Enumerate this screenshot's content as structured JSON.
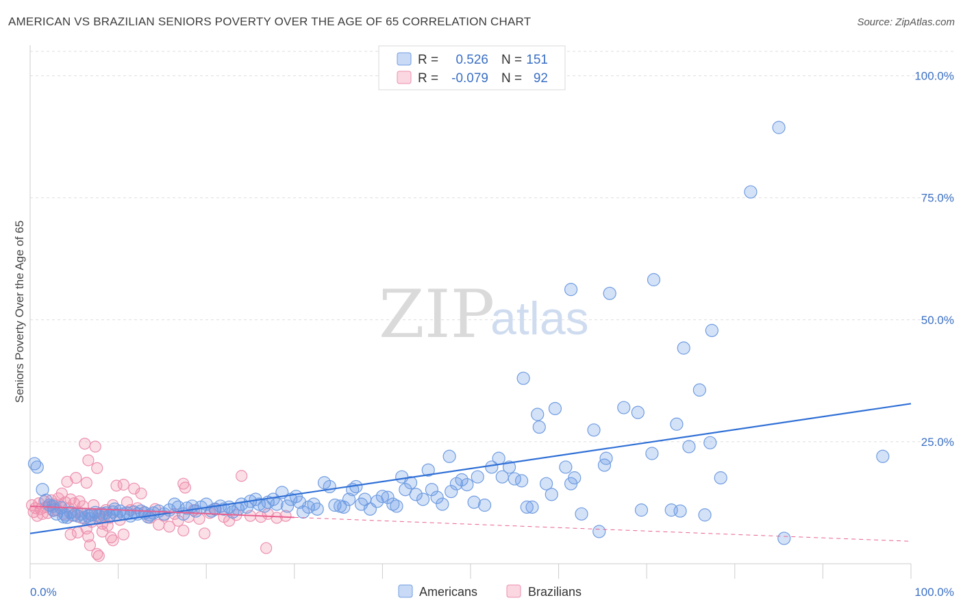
{
  "title": "AMERICAN VS BRAZILIAN SENIORS POVERTY OVER THE AGE OF 65 CORRELATION CHART",
  "source": "Source: ZipAtlas.com",
  "watermark": {
    "zip": "ZIP",
    "atlas": "atlas"
  },
  "colors": {
    "americans_fill": "rgba(100,150,230,0.28)",
    "americans_stroke": "#6f9ce0",
    "americans_line": "#2f6fd6",
    "brazilians_fill": "rgba(240,140,170,0.28)",
    "brazilians_stroke": "#ec8fae",
    "brazilians_line": "#e8608e",
    "grid": "#dddddd",
    "tick_text": "#3a6fc4"
  },
  "legend": {
    "rows": [
      {
        "r_label": "R =",
        "r_value": "0.526",
        "n_label": "N =",
        "n_value": "151",
        "series": "americans"
      },
      {
        "r_label": "R =",
        "r_value": "-0.079",
        "n_label": "N =",
        "n_value": "92",
        "series": "brazilians"
      }
    ]
  },
  "bottom_legend": {
    "americans": "Americans",
    "brazilians": "Brazilians"
  },
  "chart_data": {
    "type": "scatter",
    "title": "AMERICAN VS BRAZILIAN SENIORS POVERTY OVER THE AGE OF 65 CORRELATION CHART",
    "xlabel": "",
    "ylabel": "Seniors Poverty Over the Age of 65",
    "xlim": [
      0,
      100
    ],
    "ylim": [
      0,
      105
    ],
    "x_tick_labels": [
      "0.0%",
      "100.0%"
    ],
    "y_tick_labels": [
      "25.0%",
      "50.0%",
      "75.0%",
      "100.0%"
    ],
    "y_ticks": [
      25,
      50,
      75,
      100
    ],
    "grid": true,
    "legend_position": "top-center",
    "series": [
      {
        "name": "Americans",
        "r": 0.526,
        "n": 151,
        "trend": {
          "x": [
            0,
            100
          ],
          "y": [
            6.2,
            32.8
          ],
          "style": "solid"
        },
        "points": [
          [
            0.5,
            20.5
          ],
          [
            0.8,
            19.8
          ],
          [
            1.4,
            15.2
          ],
          [
            1.8,
            13.0
          ],
          [
            2.2,
            12.0
          ],
          [
            2.7,
            11.0
          ],
          [
            3.0,
            10.2
          ],
          [
            3.5,
            11.5
          ],
          [
            4.0,
            10.0
          ],
          [
            4.2,
            9.5
          ],
          [
            4.6,
            10.5
          ],
          [
            5.0,
            10.0
          ],
          [
            5.4,
            9.8
          ],
          [
            5.8,
            10.2
          ],
          [
            6.2,
            9.4
          ],
          [
            6.6,
            9.8
          ],
          [
            7.0,
            10.0
          ],
          [
            7.4,
            10.5
          ],
          [
            7.8,
            9.8
          ],
          [
            8.2,
            10.2
          ],
          [
            8.6,
            10.4
          ],
          [
            9.0,
            9.8
          ],
          [
            9.4,
            10.6
          ],
          [
            9.8,
            10.0
          ],
          [
            10.2,
            10.8
          ],
          [
            10.6,
            10.2
          ],
          [
            11.0,
            10.4
          ],
          [
            11.4,
            9.8
          ],
          [
            11.8,
            10.6
          ],
          [
            12.2,
            10.2
          ],
          [
            12.6,
            10.8
          ],
          [
            13.0,
            10.4
          ],
          [
            13.6,
            10.0
          ],
          [
            14.0,
            10.4
          ],
          [
            14.6,
            10.8
          ],
          [
            15.2,
            10.2
          ],
          [
            15.8,
            11.0
          ],
          [
            16.4,
            12.2
          ],
          [
            16.8,
            11.6
          ],
          [
            17.4,
            10.2
          ],
          [
            17.8,
            11.4
          ],
          [
            18.4,
            11.8
          ],
          [
            18.8,
            10.8
          ],
          [
            19.4,
            11.6
          ],
          [
            20.0,
            12.2
          ],
          [
            20.6,
            10.8
          ],
          [
            21.0,
            11.2
          ],
          [
            21.6,
            11.8
          ],
          [
            22.0,
            11.2
          ],
          [
            22.6,
            11.6
          ],
          [
            23.0,
            10.6
          ],
          [
            23.6,
            11.2
          ],
          [
            24.0,
            12.2
          ],
          [
            24.6,
            11.6
          ],
          [
            25.0,
            12.8
          ],
          [
            25.6,
            13.2
          ],
          [
            26.0,
            12.2
          ],
          [
            26.6,
            11.8
          ],
          [
            27.0,
            12.6
          ],
          [
            27.6,
            13.2
          ],
          [
            28.0,
            12.2
          ],
          [
            28.6,
            14.6
          ],
          [
            29.2,
            11.8
          ],
          [
            29.6,
            13.2
          ],
          [
            30.2,
            13.8
          ],
          [
            30.6,
            12.6
          ],
          [
            31.0,
            10.6
          ],
          [
            31.6,
            11.6
          ],
          [
            32.2,
            12.2
          ],
          [
            32.6,
            11.2
          ],
          [
            33.4,
            16.6
          ],
          [
            34.0,
            15.8
          ],
          [
            34.6,
            12.0
          ],
          [
            35.2,
            11.8
          ],
          [
            35.6,
            11.6
          ],
          [
            36.2,
            13.2
          ],
          [
            36.6,
            15.2
          ],
          [
            37.0,
            15.8
          ],
          [
            37.6,
            12.2
          ],
          [
            38.0,
            13.2
          ],
          [
            38.6,
            11.2
          ],
          [
            39.4,
            12.8
          ],
          [
            40.0,
            13.8
          ],
          [
            40.6,
            13.6
          ],
          [
            41.2,
            12.2
          ],
          [
            41.6,
            11.8
          ],
          [
            42.2,
            17.8
          ],
          [
            42.6,
            15.2
          ],
          [
            43.2,
            16.6
          ],
          [
            43.8,
            14.2
          ],
          [
            44.6,
            13.2
          ],
          [
            45.2,
            19.2
          ],
          [
            45.6,
            15.2
          ],
          [
            46.2,
            13.6
          ],
          [
            46.8,
            12.2
          ],
          [
            47.6,
            22.0
          ],
          [
            47.8,
            14.8
          ],
          [
            48.4,
            16.4
          ],
          [
            49.0,
            17.2
          ],
          [
            49.6,
            16.2
          ],
          [
            50.4,
            12.6
          ],
          [
            50.8,
            17.8
          ],
          [
            51.6,
            12.0
          ],
          [
            52.4,
            19.8
          ],
          [
            53.2,
            21.6
          ],
          [
            53.6,
            17.8
          ],
          [
            54.4,
            19.8
          ],
          [
            55.0,
            17.4
          ],
          [
            55.8,
            17.0
          ],
          [
            56.4,
            11.6
          ],
          [
            57.0,
            11.6
          ],
          [
            58.6,
            16.4
          ],
          [
            59.2,
            14.2
          ],
          [
            60.8,
            19.8
          ],
          [
            61.4,
            16.4
          ],
          [
            61.8,
            17.6
          ],
          [
            62.6,
            10.2
          ],
          [
            64.6,
            6.6
          ],
          [
            65.2,
            20.2
          ],
          [
            65.4,
            21.6
          ],
          [
            69.4,
            11.0
          ],
          [
            70.6,
            22.6
          ],
          [
            72.8,
            11.0
          ],
          [
            73.8,
            10.8
          ],
          [
            74.8,
            24.0
          ],
          [
            76.6,
            10.0
          ],
          [
            78.4,
            17.6
          ],
          [
            96.8,
            22.0
          ],
          [
            85.6,
            5.2
          ],
          [
            56.0,
            38.0
          ],
          [
            57.6,
            30.6
          ],
          [
            57.8,
            28.0
          ],
          [
            59.6,
            31.8
          ],
          [
            61.4,
            56.2
          ],
          [
            64.0,
            27.4
          ],
          [
            65.8,
            55.4
          ],
          [
            67.4,
            32.0
          ],
          [
            69.0,
            31.0
          ],
          [
            70.8,
            58.2
          ],
          [
            73.4,
            28.6
          ],
          [
            74.2,
            44.2
          ],
          [
            76.0,
            35.6
          ],
          [
            77.4,
            47.8
          ],
          [
            77.2,
            24.8
          ],
          [
            81.8,
            76.2
          ],
          [
            85.0,
            89.4
          ],
          [
            2.6,
            11.8
          ],
          [
            3.8,
            9.6
          ],
          [
            6.8,
            9.2
          ],
          [
            9.6,
            11.2
          ],
          [
            13.4,
            9.6
          ]
        ]
      },
      {
        "name": "Brazilians",
        "r": -0.079,
        "n": 92,
        "trend": {
          "x": [
            0,
            30
          ],
          "y": [
            11.8,
            9.5
          ],
          "style": "solid"
        },
        "trend_extension": {
          "x": [
            30,
            100
          ],
          "y": [
            9.5,
            4.6
          ],
          "style": "dashed"
        },
        "points": [
          [
            0.2,
            12.0
          ],
          [
            0.4,
            10.6
          ],
          [
            0.6,
            11.4
          ],
          [
            0.8,
            9.8
          ],
          [
            1.0,
            12.4
          ],
          [
            1.2,
            11.2
          ],
          [
            1.4,
            10.2
          ],
          [
            1.6,
            12.8
          ],
          [
            1.8,
            11.6
          ],
          [
            2.0,
            10.4
          ],
          [
            2.2,
            11.8
          ],
          [
            2.4,
            13.0
          ],
          [
            2.6,
            10.8
          ],
          [
            2.8,
            12.2
          ],
          [
            3.0,
            11.0
          ],
          [
            3.2,
            13.4
          ],
          [
            3.4,
            12.0
          ],
          [
            3.6,
            14.4
          ],
          [
            3.8,
            10.2
          ],
          [
            4.0,
            12.6
          ],
          [
            4.2,
            16.8
          ],
          [
            4.4,
            11.4
          ],
          [
            4.6,
            13.2
          ],
          [
            4.8,
            9.8
          ],
          [
            5.0,
            12.4
          ],
          [
            5.2,
            17.6
          ],
          [
            5.4,
            10.6
          ],
          [
            5.6,
            12.8
          ],
          [
            5.8,
            9.4
          ],
          [
            6.0,
            11.8
          ],
          [
            6.2,
            24.6
          ],
          [
            6.4,
            16.6
          ],
          [
            6.6,
            21.2
          ],
          [
            6.8,
            10.2
          ],
          [
            7.0,
            8.6
          ],
          [
            7.2,
            12.0
          ],
          [
            7.4,
            24.0
          ],
          [
            7.6,
            19.6
          ],
          [
            7.8,
            9.2
          ],
          [
            8.0,
            10.4
          ],
          [
            8.2,
            8.2
          ],
          [
            8.4,
            9.6
          ],
          [
            8.6,
            11.0
          ],
          [
            8.8,
            7.8
          ],
          [
            9.0,
            9.4
          ],
          [
            9.4,
            12.0
          ],
          [
            9.8,
            16.0
          ],
          [
            10.2,
            9.0
          ],
          [
            10.6,
            16.2
          ],
          [
            11.0,
            12.6
          ],
          [
            11.4,
            11.0
          ],
          [
            11.8,
            15.4
          ],
          [
            12.2,
            11.4
          ],
          [
            12.6,
            14.4
          ],
          [
            13.0,
            10.6
          ],
          [
            13.6,
            9.4
          ],
          [
            14.2,
            11.2
          ],
          [
            14.6,
            8.0
          ],
          [
            15.2,
            9.8
          ],
          [
            15.8,
            7.6
          ],
          [
            16.4,
            10.2
          ],
          [
            16.8,
            8.8
          ],
          [
            17.4,
            16.4
          ],
          [
            17.6,
            15.6
          ],
          [
            18.0,
            9.6
          ],
          [
            18.6,
            11.0
          ],
          [
            19.2,
            9.2
          ],
          [
            19.8,
            6.2
          ],
          [
            20.4,
            10.4
          ],
          [
            21.0,
            11.2
          ],
          [
            22.0,
            9.6
          ],
          [
            22.6,
            8.8
          ],
          [
            23.4,
            10.0
          ],
          [
            24.0,
            18.0
          ],
          [
            25.0,
            9.8
          ],
          [
            26.2,
            9.6
          ],
          [
            27.0,
            10.2
          ],
          [
            28.0,
            9.4
          ],
          [
            29.0,
            9.8
          ],
          [
            6.4,
            7.2
          ],
          [
            6.6,
            5.6
          ],
          [
            7.6,
            2.0
          ],
          [
            6.8,
            3.8
          ],
          [
            8.2,
            6.6
          ],
          [
            9.2,
            5.4
          ],
          [
            9.4,
            4.8
          ],
          [
            10.6,
            6.0
          ],
          [
            7.8,
            1.6
          ],
          [
            17.4,
            6.8
          ],
          [
            26.8,
            3.2
          ],
          [
            4.6,
            6.0
          ],
          [
            5.4,
            6.4
          ]
        ]
      }
    ]
  }
}
